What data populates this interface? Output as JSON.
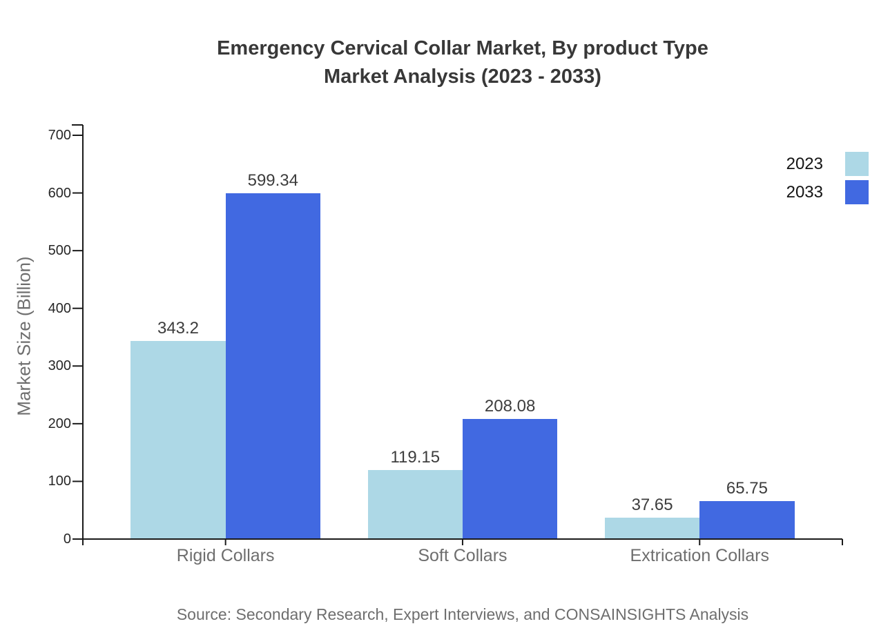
{
  "chart_data": {
    "type": "bar",
    "title": "Emergency Cervical Collar Market, By product Type",
    "subtitle": "Market Analysis (2023 - 2033)",
    "ylabel": "Market Size (Billion)",
    "xlabel": "",
    "categories": [
      "Rigid Collars",
      "Soft Collars",
      "Extrication Collars"
    ],
    "series": [
      {
        "name": "2023",
        "color": "#ADD8E6",
        "values": [
          343.2,
          119.15,
          37.65
        ]
      },
      {
        "name": "2033",
        "color": "#4169E1",
        "values": [
          599.34,
          208.08,
          65.75
        ]
      }
    ],
    "ylim": [
      0,
      700
    ],
    "yticks": [
      0,
      100,
      200,
      300,
      400,
      500,
      600,
      700
    ],
    "grid": false,
    "legend_position": "top-right",
    "axis_color": "#1a1a1a",
    "source": "Source: Secondary Research, Expert Interviews, and CONSAINSIGHTS Analysis"
  }
}
